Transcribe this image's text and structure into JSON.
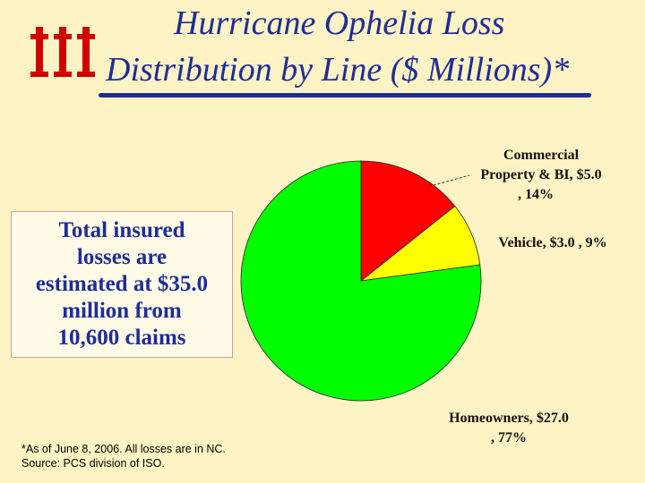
{
  "title": {
    "line1": "Hurricane Ophelia Loss",
    "line2": "Distribution by Line ($ Millions)*"
  },
  "callout": {
    "line1": "Total insured",
    "line2": "losses are",
    "line3": "estimated at $35.0",
    "line4": "million from",
    "line5": "10,600 claims"
  },
  "footnote": {
    "line1": "*As of June 8, 2006.  All losses are in NC.",
    "line2": "Source:  PCS division of ISO."
  },
  "colors": {
    "commercial": "#ff0000",
    "vehicle": "#ffff00",
    "homeowners": "#00ff00",
    "title": "#1f2d96",
    "logo": "#d40000"
  },
  "chart_data": {
    "type": "pie",
    "title": "Hurricane Ophelia Loss Distribution by Line ($ Millions)*",
    "slices": [
      {
        "name": "Commercial Property & BI",
        "value": 5.0,
        "percent": 14,
        "color": "#ff0000",
        "label_lines": [
          "Commercial",
          "Property & BI, $5.0",
          ", 14%"
        ]
      },
      {
        "name": "Vehicle",
        "value": 3.0,
        "percent": 9,
        "color": "#ffff00",
        "label_lines": [
          "Vehicle, $3.0 , 9%"
        ]
      },
      {
        "name": "Homeowners",
        "value": 27.0,
        "percent": 77,
        "color": "#00ff00",
        "label_lines": [
          "Homeowners, $27.0",
          ", 77%"
        ]
      }
    ]
  }
}
